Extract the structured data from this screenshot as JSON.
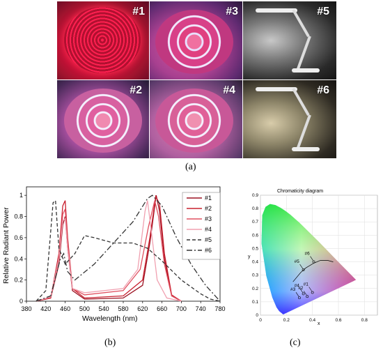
{
  "photos": {
    "labels": [
      "#1",
      "#3",
      "#5",
      "#2",
      "#4",
      "#6"
    ],
    "caption": "(a)"
  },
  "spectrum": {
    "caption": "(b)",
    "chart_data": {
      "type": "line",
      "xlabel": "Wavelength (nm)",
      "ylabel": "Relative Radiant Power",
      "xlim": [
        380,
        780
      ],
      "ylim": [
        0,
        1.08
      ],
      "xticks": [
        "380",
        "420",
        "460",
        "500",
        "540",
        "580",
        "620",
        "660",
        "700",
        "740",
        "780"
      ],
      "yticks": [
        "0",
        "0.2",
        "0.4",
        "0.6",
        "0.8",
        "1"
      ],
      "legend_position": "right",
      "series": [
        {
          "name": "#1",
          "color": "#9b1020",
          "dash": "",
          "points": [
            [
              400,
              0
            ],
            [
              430,
              0.03
            ],
            [
              447,
              0.35
            ],
            [
              455,
              0.72
            ],
            [
              460,
              0.8
            ],
            [
              465,
              0.5
            ],
            [
              475,
              0.1
            ],
            [
              500,
              0.02
            ],
            [
              580,
              0.03
            ],
            [
              620,
              0.15
            ],
            [
              635,
              0.55
            ],
            [
              648,
              1.0
            ],
            [
              655,
              0.85
            ],
            [
              665,
              0.4
            ],
            [
              680,
              0.05
            ],
            [
              700,
              0
            ]
          ]
        },
        {
          "name": "#2",
          "color": "#c8202f",
          "dash": "",
          "points": [
            [
              400,
              0
            ],
            [
              430,
              0.03
            ],
            [
              447,
              0.45
            ],
            [
              455,
              0.9
            ],
            [
              460,
              0.95
            ],
            [
              465,
              0.6
            ],
            [
              475,
              0.12
            ],
            [
              500,
              0.03
            ],
            [
              580,
              0.05
            ],
            [
              620,
              0.2
            ],
            [
              635,
              0.6
            ],
            [
              647,
              0.99
            ],
            [
              655,
              0.92
            ],
            [
              665,
              0.45
            ],
            [
              680,
              0.06
            ],
            [
              700,
              0
            ]
          ]
        },
        {
          "name": "#3",
          "color": "#e05060",
          "dash": "",
          "points": [
            [
              400,
              0
            ],
            [
              430,
              0.04
            ],
            [
              447,
              0.4
            ],
            [
              455,
              0.82
            ],
            [
              460,
              0.87
            ],
            [
              465,
              0.55
            ],
            [
              475,
              0.12
            ],
            [
              500,
              0.06
            ],
            [
              580,
              0.1
            ],
            [
              615,
              0.3
            ],
            [
              632,
              0.7
            ],
            [
              645,
              0.95
            ],
            [
              653,
              0.8
            ],
            [
              665,
              0.35
            ],
            [
              680,
              0.05
            ],
            [
              700,
              0
            ]
          ]
        },
        {
          "name": "#4",
          "color": "#f0a0b0",
          "dash": "",
          "points": [
            [
              400,
              0
            ],
            [
              430,
              0.04
            ],
            [
              447,
              0.4
            ],
            [
              455,
              0.76
            ],
            [
              460,
              0.78
            ],
            [
              465,
              0.5
            ],
            [
              475,
              0.12
            ],
            [
              500,
              0.08
            ],
            [
              580,
              0.12
            ],
            [
              610,
              0.3
            ],
            [
              625,
              0.85
            ],
            [
              630,
              0.95
            ],
            [
              637,
              0.7
            ],
            [
              650,
              0.2
            ],
            [
              670,
              0.03
            ],
            [
              700,
              0
            ]
          ]
        },
        {
          "name": "#5",
          "color": "#333333",
          "dash": "5,3",
          "points": [
            [
              400,
              0
            ],
            [
              420,
              0.1
            ],
            [
              435,
              0.93
            ],
            [
              440,
              0.95
            ],
            [
              447,
              0.5
            ],
            [
              460,
              0.35
            ],
            [
              480,
              0.45
            ],
            [
              500,
              0.62
            ],
            [
              520,
              0.6
            ],
            [
              560,
              0.55
            ],
            [
              600,
              0.55
            ],
            [
              630,
              0.5
            ],
            [
              660,
              0.38
            ],
            [
              700,
              0.2
            ],
            [
              740,
              0.07
            ],
            [
              760,
              0.02
            ],
            [
              780,
              0
            ]
          ]
        },
        {
          "name": "#6",
          "color": "#333333",
          "dash": "8,3,2,3",
          "points": [
            [
              400,
              0
            ],
            [
              430,
              0.05
            ],
            [
              450,
              0.4
            ],
            [
              457,
              0.45
            ],
            [
              465,
              0.28
            ],
            [
              480,
              0.2
            ],
            [
              520,
              0.35
            ],
            [
              560,
              0.55
            ],
            [
              600,
              0.75
            ],
            [
              630,
              0.97
            ],
            [
              640,
              1.0
            ],
            [
              660,
              0.9
            ],
            [
              690,
              0.6
            ],
            [
              720,
              0.35
            ],
            [
              750,
              0.15
            ],
            [
              770,
              0.05
            ],
            [
              780,
              0
            ]
          ]
        }
      ]
    }
  },
  "cie": {
    "caption": "(c)",
    "chart_data": {
      "type": "scatter",
      "title": "Chromaticity diagram",
      "xlabel": "x",
      "ylabel": "y",
      "xlim": [
        0,
        0.9
      ],
      "ylim": [
        0,
        0.9
      ],
      "xticks": [
        "0",
        "0.2",
        "0.4",
        "0.6",
        "0.8"
      ],
      "yticks": [
        "0",
        "0.1",
        "0.2",
        "0.3",
        "0.4",
        "0.5",
        "0.6",
        "0.7",
        "0.8",
        "0.9"
      ],
      "points": [
        {
          "label": "#5",
          "x": 0.33,
          "y": 0.34
        },
        {
          "label": "#6",
          "x": 0.41,
          "y": 0.4
        },
        {
          "label": "#3",
          "x": 0.3,
          "y": 0.13
        },
        {
          "label": "#4",
          "x": 0.33,
          "y": 0.16
        },
        {
          "label": "#1",
          "x": 0.4,
          "y": 0.17
        },
        {
          "label": "#2",
          "x": 0.36,
          "y": 0.14
        }
      ]
    }
  }
}
